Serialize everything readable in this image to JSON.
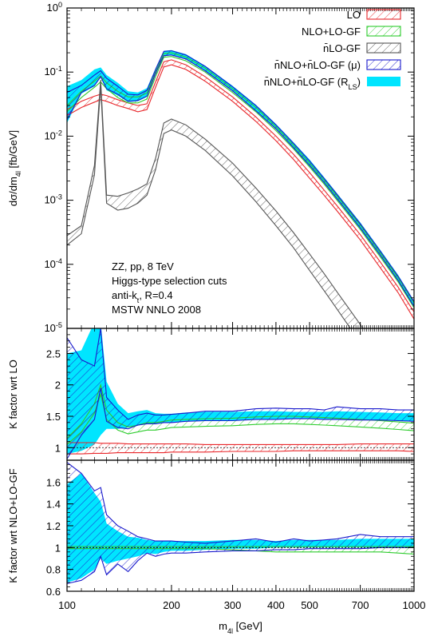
{
  "chart_data": [
    {
      "type": "line",
      "panel": "main",
      "xlabel": "m",
      "xlabel_sub": "4l",
      "xlabel_unit": " [GeV]",
      "ylabel": "dσ/dm",
      "ylabel_sub": "4l",
      "ylabel_unit": " [fb/GeV]",
      "xscale": "log",
      "yscale": "log",
      "xlim": [
        100,
        1000
      ],
      "ylim": [
        1e-05,
        1
      ],
      "xticks": [
        100,
        200,
        300,
        400,
        500,
        700,
        1000
      ],
      "xtick_labels": [
        "100",
        "200",
        "300",
        "400",
        "500",
        "700",
        "1000"
      ],
      "yticks": [
        1e-05,
        0.0001,
        0.001,
        0.01,
        0.1,
        1
      ],
      "ytick_bases": [
        "10",
        "10",
        "10",
        "10",
        "10",
        "10"
      ],
      "ytick_exps": [
        "-5",
        "-4",
        "-3",
        "-2",
        "-1",
        "0"
      ],
      "legend_position": "top-right",
      "annotations": [
        {
          "text": "ZZ, pp, 8 TeV"
        },
        {
          "text": "Higgs-type selection cuts"
        },
        {
          "text": "anti-k",
          "sub": "t",
          "suffix": ", R=0.4"
        },
        {
          "text": "MSTW NNLO 2008"
        }
      ],
      "x": [
        100,
        110,
        120,
        125,
        130,
        140,
        150,
        160,
        170,
        180,
        190,
        200,
        220,
        250,
        300,
        350,
        400,
        450,
        500,
        550,
        600,
        700,
        800,
        900,
        1000
      ],
      "series": [
        {
          "name": "LO",
          "color": "#e8262a",
          "style": "hatch",
          "lower": [
            0.021,
            0.028,
            0.034,
            0.037,
            0.035,
            0.03,
            0.027,
            0.024,
            0.026,
            0.058,
            0.12,
            0.13,
            0.11,
            0.072,
            0.035,
            0.017,
            0.0085,
            0.0043,
            0.0022,
            0.0012,
            0.00068,
            0.00024,
            8.8e-05,
            3.6e-05,
            1.4e-05
          ],
          "upper": [
            0.026,
            0.035,
            0.042,
            0.045,
            0.043,
            0.037,
            0.033,
            0.03,
            0.032,
            0.07,
            0.145,
            0.155,
            0.13,
            0.085,
            0.041,
            0.02,
            0.01,
            0.0052,
            0.0027,
            0.00145,
            0.00082,
            0.00029,
            0.000108,
            4.4e-05,
            1.8e-05
          ]
        },
        {
          "name": "NLO+LO-GF",
          "color": "#2fcc2f",
          "style": "hatch",
          "lower": [
            0.024,
            0.04,
            0.058,
            0.07,
            0.055,
            0.04,
            0.033,
            0.033,
            0.038,
            0.085,
            0.17,
            0.175,
            0.15,
            0.1,
            0.048,
            0.024,
            0.0122,
            0.0063,
            0.0033,
            0.0018,
            0.001,
            0.00035,
            0.00013,
            5.3e-05,
            2.1e-05
          ],
          "upper": [
            0.03,
            0.05,
            0.072,
            0.087,
            0.068,
            0.05,
            0.041,
            0.041,
            0.047,
            0.1,
            0.195,
            0.2,
            0.172,
            0.115,
            0.055,
            0.028,
            0.014,
            0.0072,
            0.0038,
            0.00207,
            0.00116,
            0.00041,
            0.00015,
            6.2e-05,
            2.5e-05
          ]
        },
        {
          "name": "n̄LO-GF",
          "color": "#555555",
          "style": "hatch",
          "lower": [
            0.0002,
            0.0003,
            0.0025,
            0.06,
            0.0009,
            0.0007,
            0.00075,
            0.0009,
            0.0012,
            0.003,
            0.011,
            0.0125,
            0.01,
            0.006,
            0.0024,
            0.00095,
            0.0004,
            0.00018,
            8e-05,
            3.9e-05,
            2e-05,
            6e-06,
            1.9e-06,
            6.5e-07,
            2.3e-07
          ],
          "upper": [
            0.00028,
            0.0004,
            0.0035,
            0.075,
            0.0012,
            0.00115,
            0.0013,
            0.0015,
            0.0018,
            0.0045,
            0.016,
            0.0185,
            0.015,
            0.009,
            0.0038,
            0.00155,
            0.00068,
            0.00031,
            0.000145,
            7.2e-05,
            3.7e-05,
            1.15e-05,
            3.8e-06,
            1.3e-06,
            4.8e-07
          ]
        },
        {
          "name": "n̄NLO+n̄LO-GF (μ)",
          "color": "#1a1acc",
          "style": "hatch",
          "lower": [
            0.018,
            0.048,
            0.062,
            0.085,
            0.055,
            0.045,
            0.035,
            0.036,
            0.042,
            0.095,
            0.18,
            0.185,
            0.16,
            0.105,
            0.051,
            0.025,
            0.013,
            0.0066,
            0.0035,
            0.0019,
            0.00106,
            0.00037,
            0.000138,
            5.6e-05,
            2.2e-05
          ],
          "upper": [
            0.048,
            0.062,
            0.09,
            0.105,
            0.08,
            0.06,
            0.045,
            0.044,
            0.052,
            0.11,
            0.21,
            0.215,
            0.185,
            0.123,
            0.059,
            0.03,
            0.015,
            0.0077,
            0.0041,
            0.0022,
            0.00123,
            0.00043,
            0.00016,
            6.5e-05,
            2.6e-05
          ]
        },
        {
          "name": "n̄NLO+n̄LO-GF (R",
          "name_sub": "LS",
          "name_suffix": ")",
          "color": "#00e5ff",
          "style": "fill",
          "lower": [
            0.016,
            0.046,
            0.06,
            0.082,
            0.052,
            0.043,
            0.034,
            0.035,
            0.041,
            0.093,
            0.178,
            0.183,
            0.158,
            0.104,
            0.05,
            0.025,
            0.0128,
            0.0065,
            0.0034,
            0.00187,
            0.00104,
            0.00036,
            0.000135,
            5.5e-05,
            2.1e-05
          ],
          "upper": [
            0.06,
            0.075,
            0.11,
            0.118,
            0.09,
            0.068,
            0.05,
            0.048,
            0.056,
            0.114,
            0.215,
            0.22,
            0.19,
            0.126,
            0.061,
            0.031,
            0.0155,
            0.008,
            0.0043,
            0.0023,
            0.00128,
            0.00045,
            0.000167,
            6.8e-05,
            2.7e-05
          ]
        }
      ]
    },
    {
      "type": "line",
      "panel": "ratio-lo",
      "ylabel": "K factor wrt LO",
      "xscale": "log",
      "xlim": [
        100,
        1000
      ],
      "ylim": [
        0.8,
        2.9
      ],
      "yticks": [
        1,
        1.5,
        2,
        2.5
      ],
      "ytick_labels": [
        "1",
        "1.5",
        "2",
        "2.5"
      ],
      "x": [
        100,
        110,
        120,
        125,
        130,
        140,
        150,
        160,
        170,
        180,
        190,
        200,
        220,
        250,
        300,
        350,
        400,
        450,
        500,
        550,
        600,
        700,
        800,
        900,
        1000
      ],
      "series": [
        {
          "name": "LO",
          "color": "#e8262a",
          "style": "hatch",
          "lower": [
            0.9,
            0.9,
            0.91,
            0.91,
            0.91,
            0.92,
            0.92,
            0.92,
            0.92,
            0.92,
            0.92,
            0.93,
            0.93,
            0.93,
            0.94,
            0.94,
            0.94,
            0.95,
            0.95,
            0.95,
            0.95,
            0.95,
            0.95,
            0.95,
            0.94
          ],
          "upper": [
            1.08,
            1.08,
            1.08,
            1.07,
            1.07,
            1.07,
            1.06,
            1.06,
            1.06,
            1.06,
            1.06,
            1.06,
            1.06,
            1.05,
            1.05,
            1.05,
            1.05,
            1.05,
            1.05,
            1.05,
            1.05,
            1.06,
            1.06,
            1.06,
            1.06
          ]
        },
        {
          "name": "NLO+LO-GF",
          "color": "#2fcc2f",
          "style": "hatch",
          "lower": [
            1.05,
            1.25,
            1.55,
            1.85,
            1.45,
            1.28,
            1.22,
            1.25,
            1.28,
            1.28,
            1.3,
            1.32,
            1.33,
            1.34,
            1.35,
            1.37,
            1.38,
            1.38,
            1.37,
            1.36,
            1.35,
            1.33,
            1.31,
            1.29,
            1.27
          ],
          "upper": [
            1.15,
            1.38,
            1.7,
            2.0,
            1.6,
            1.4,
            1.33,
            1.36,
            1.4,
            1.4,
            1.42,
            1.44,
            1.45,
            1.46,
            1.47,
            1.49,
            1.5,
            1.5,
            1.49,
            1.48,
            1.47,
            1.45,
            1.43,
            1.41,
            1.39
          ]
        },
        {
          "name": "n̄NLO+n̄LO-GF (μ)",
          "color": "#1a1acc",
          "style": "hatch",
          "lower": [
            0.82,
            1.2,
            1.45,
            1.95,
            1.42,
            1.32,
            1.3,
            1.36,
            1.38,
            1.38,
            1.4,
            1.4,
            1.42,
            1.43,
            1.43,
            1.45,
            1.45,
            1.46,
            1.46,
            1.45,
            1.45,
            1.44,
            1.44,
            1.43,
            1.42
          ],
          "upper": [
            2.75,
            2.4,
            2.3,
            2.9,
            1.8,
            1.6,
            1.45,
            1.52,
            1.55,
            1.52,
            1.52,
            1.53,
            1.55,
            1.58,
            1.58,
            1.62,
            1.63,
            1.62,
            1.62,
            1.6,
            1.65,
            1.62,
            1.62,
            1.6,
            1.6
          ]
        },
        {
          "name": "n̄NLO+n̄LO-GF (R",
          "name_sub": "LS",
          "name_suffix": ")",
          "color": "#00e5ff",
          "style": "fill",
          "lower": [
            0.9,
            0.95,
            1.05,
            1.2,
            1.3,
            1.3,
            1.32,
            1.35,
            1.38,
            1.38,
            1.4,
            1.4,
            1.42,
            1.43,
            1.43,
            1.45,
            1.45,
            1.46,
            1.46,
            1.45,
            1.45,
            1.44,
            1.44,
            1.43,
            1.42
          ],
          "upper": [
            2.5,
            2.55,
            3.0,
            3.0,
            2.05,
            1.7,
            1.55,
            1.58,
            1.6,
            1.55,
            1.54,
            1.54,
            1.56,
            1.57,
            1.57,
            1.58,
            1.58,
            1.57,
            1.57,
            1.57,
            1.58,
            1.57,
            1.56,
            1.55,
            1.55
          ]
        }
      ]
    },
    {
      "type": "line",
      "panel": "ratio-nlo",
      "ylabel": "K factor wrt NLO+LO-GF",
      "xscale": "log",
      "xlim": [
        100,
        1000
      ],
      "ylim": [
        0.6,
        1.8
      ],
      "yticks": [
        0.6,
        0.8,
        1,
        1.2,
        1.4,
        1.6
      ],
      "ytick_labels": [
        "0.6",
        "0.8",
        "1",
        "1.2",
        "1.4",
        "1.6"
      ],
      "x": [
        100,
        110,
        120,
        125,
        130,
        140,
        150,
        160,
        170,
        180,
        190,
        200,
        220,
        250,
        300,
        350,
        400,
        450,
        500,
        550,
        600,
        700,
        800,
        900,
        1000
      ],
      "series": [
        {
          "name": "NLO+LO-GF",
          "color": "#2fcc2f",
          "style": "hatch",
          "lower": [
            0.99,
            0.99,
            0.99,
            0.99,
            0.99,
            0.99,
            0.99,
            0.99,
            0.99,
            0.99,
            0.99,
            0.99,
            0.99,
            0.99,
            0.98,
            0.97,
            0.96,
            0.96,
            0.96,
            0.96,
            0.96,
            0.96,
            0.96,
            0.95,
            0.94
          ],
          "upper": [
            1.01,
            1.01,
            1.01,
            1.01,
            1.01,
            1.01,
            1.01,
            1.01,
            1.01,
            1.01,
            1.01,
            1.01,
            1.01,
            1.01,
            1.01,
            1.01,
            1.01,
            1.01,
            1.01,
            1.01,
            1.01,
            1.01,
            1.01,
            1.01,
            1.01
          ]
        },
        {
          "name": "n̄NLO+n̄LO-GF (μ)",
          "color": "#1a1acc",
          "style": "hatch",
          "lower": [
            0.67,
            0.7,
            0.78,
            0.92,
            0.75,
            0.85,
            0.78,
            0.88,
            0.95,
            0.92,
            0.94,
            0.95,
            0.95,
            0.96,
            0.97,
            0.97,
            0.98,
            0.98,
            0.99,
            0.99,
            0.99,
            0.99,
            1.0,
            1.0,
            1.0
          ],
          "upper": [
            1.78,
            1.68,
            1.52,
            1.55,
            1.3,
            1.2,
            1.15,
            1.1,
            1.08,
            1.06,
            1.06,
            1.06,
            1.05,
            1.04,
            1.06,
            1.08,
            1.05,
            1.08,
            1.06,
            1.07,
            1.08,
            1.12,
            1.1,
            1.1,
            1.1
          ]
        },
        {
          "name": "n̄NLO+n̄LO-GF (R",
          "name_sub": "LS",
          "name_suffix": ")",
          "color": "#00e5ff",
          "style": "fill",
          "lower": [
            0.68,
            0.72,
            0.8,
            0.9,
            0.85,
            0.88,
            0.9,
            0.92,
            0.95,
            0.94,
            0.96,
            0.97,
            0.97,
            0.98,
            0.99,
            0.99,
            1.0,
            1.0,
            1.0,
            1.0,
            1.0,
            1.0,
            1.0,
            1.0,
            1.0
          ],
          "upper": [
            1.58,
            1.68,
            1.5,
            1.42,
            1.22,
            1.15,
            1.1,
            1.09,
            1.07,
            1.06,
            1.06,
            1.06,
            1.06,
            1.06,
            1.07,
            1.07,
            1.06,
            1.07,
            1.07,
            1.07,
            1.07,
            1.08,
            1.08,
            1.08,
            1.08
          ]
        }
      ]
    }
  ]
}
